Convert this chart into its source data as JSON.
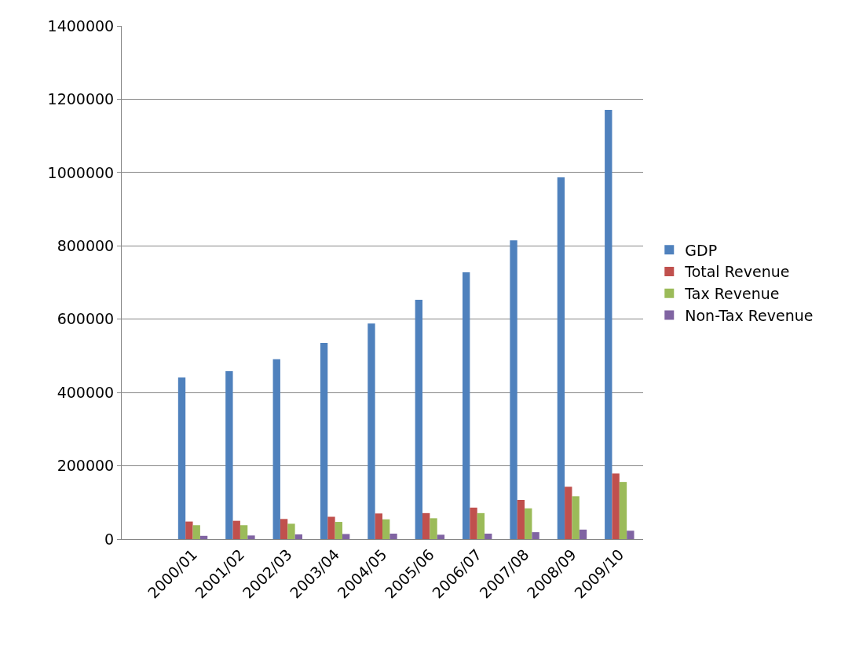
{
  "chart_data": {
    "type": "bar",
    "categories": [
      null,
      "2000/01",
      "2001/02",
      "2002/03",
      "2003/04",
      "2004/05",
      "2005/06",
      "2006/07",
      "2007/08",
      "2008/09",
      "2009/10"
    ],
    "series": [
      {
        "name": "GDP",
        "color": "#4f81bd",
        "values": [
          null,
          441000,
          458000,
          491000,
          535000,
          588000,
          653000,
          728000,
          815000,
          987000,
          1171000
        ]
      },
      {
        "name": "Total Revenue",
        "color": "#c0504d",
        "values": [
          null,
          48000,
          50000,
          55000,
          61000,
          70000,
          71000,
          86000,
          107000,
          143000,
          179000
        ]
      },
      {
        "name": "Tax Revenue",
        "color": "#9bbb59",
        "values": [
          null,
          38000,
          38000,
          42000,
          47000,
          54000,
          57000,
          71000,
          84000,
          117000,
          156000
        ]
      },
      {
        "name": "Non-Tax Revenue",
        "color": "#8064a2",
        "values": [
          null,
          9000,
          10000,
          13000,
          14000,
          15000,
          12000,
          15000,
          19000,
          26000,
          23000
        ]
      }
    ],
    "ylim": [
      0,
      1400000
    ],
    "yticks": [
      0,
      200000,
      400000,
      600000,
      800000,
      1000000,
      1200000,
      1400000
    ],
    "grid": "y",
    "legend": "right"
  }
}
